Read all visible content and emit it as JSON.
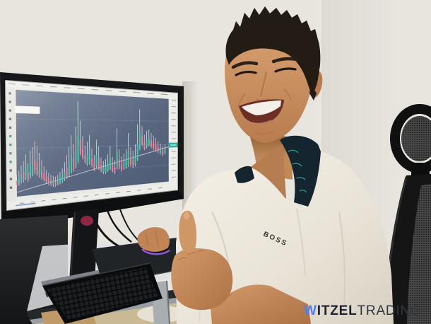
{
  "watermark": {
    "part_w": "W",
    "part_bold": "ITZEL",
    "part_light": "TRADING",
    "color_w": "#4d7ef2",
    "color_bold": "#1c232e",
    "color_light": "#30363f"
  },
  "shirt": {
    "brand": "BOSS"
  },
  "colors": {
    "wall": "#e6e4dc",
    "chart_background": "#5c6a84",
    "mouse_rgb_glow": "#a05ef5",
    "price_label": "#2cb5a5"
  },
  "chart_data": {
    "type": "candlestick",
    "title": "",
    "background": "#5c6a84",
    "up_color": "#4ec7ae",
    "down_color": "#ef8396",
    "wick_up": "#cdeee6",
    "wick_down": "#f6ccd4",
    "price_label_color": "#2cb5a5",
    "price_label_v": 0.56,
    "h_gridlines": [
      0.27,
      0.55,
      0.8
    ],
    "trendline": {
      "from": [
        0.0,
        0.96
      ],
      "to": [
        1.0,
        0.58
      ]
    },
    "legend_panel": true,
    "candles": [
      [
        0.0,
        0.8,
        0.89,
        "d"
      ],
      [
        0.015,
        0.76,
        0.88,
        "u"
      ],
      [
        0.03,
        0.71,
        0.86,
        "u"
      ],
      [
        0.045,
        0.67,
        0.85,
        "d"
      ],
      [
        0.06,
        0.61,
        0.83,
        "u"
      ],
      [
        0.075,
        0.69,
        0.85,
        "d"
      ],
      [
        0.09,
        0.57,
        0.82,
        "u"
      ],
      [
        0.105,
        0.54,
        0.8,
        "u"
      ],
      [
        0.12,
        0.49,
        0.78,
        "d"
      ],
      [
        0.135,
        0.53,
        0.8,
        "d"
      ],
      [
        0.15,
        0.6,
        0.82,
        "u"
      ],
      [
        0.165,
        0.67,
        0.84,
        "d"
      ],
      [
        0.18,
        0.73,
        0.86,
        "d"
      ],
      [
        0.195,
        0.77,
        0.88,
        "d"
      ],
      [
        0.21,
        0.8,
        0.9,
        "d"
      ],
      [
        0.225,
        0.82,
        0.91,
        "d"
      ],
      [
        0.24,
        0.83,
        0.92,
        "u"
      ],
      [
        0.255,
        0.84,
        0.92,
        "d"
      ],
      [
        0.27,
        0.82,
        0.91,
        "u"
      ],
      [
        0.285,
        0.8,
        0.9,
        "u"
      ],
      [
        0.3,
        0.76,
        0.89,
        "u"
      ],
      [
        0.315,
        0.7,
        0.87,
        "u"
      ],
      [
        0.33,
        0.63,
        0.85,
        "d"
      ],
      [
        0.345,
        0.55,
        0.83,
        "u"
      ],
      [
        0.36,
        0.43,
        0.8,
        "u"
      ],
      [
        0.375,
        0.52,
        0.78,
        "d"
      ],
      [
        0.39,
        0.34,
        0.75,
        "u"
      ],
      [
        0.405,
        0.08,
        0.7,
        "u"
      ],
      [
        0.42,
        0.28,
        0.62,
        "d"
      ],
      [
        0.435,
        0.44,
        0.66,
        "d"
      ],
      [
        0.45,
        0.54,
        0.71,
        "d"
      ],
      [
        0.465,
        0.5,
        0.73,
        "u"
      ],
      [
        0.48,
        0.43,
        0.72,
        "u"
      ],
      [
        0.495,
        0.57,
        0.75,
        "d"
      ],
      [
        0.51,
        0.64,
        0.79,
        "d"
      ],
      [
        0.525,
        0.48,
        0.76,
        "u"
      ],
      [
        0.54,
        0.55,
        0.78,
        "d"
      ],
      [
        0.555,
        0.67,
        0.81,
        "d"
      ],
      [
        0.57,
        0.71,
        0.83,
        "u"
      ],
      [
        0.585,
        0.69,
        0.83,
        "u"
      ],
      [
        0.6,
        0.64,
        0.81,
        "u"
      ],
      [
        0.615,
        0.55,
        0.79,
        "u"
      ],
      [
        0.63,
        0.67,
        0.82,
        "d"
      ],
      [
        0.645,
        0.71,
        0.84,
        "d"
      ],
      [
        0.66,
        0.36,
        0.79,
        "u"
      ],
      [
        0.675,
        0.59,
        0.79,
        "d"
      ],
      [
        0.69,
        0.67,
        0.82,
        "d"
      ],
      [
        0.705,
        0.64,
        0.8,
        "u"
      ],
      [
        0.72,
        0.59,
        0.79,
        "u"
      ],
      [
        0.735,
        0.41,
        0.77,
        "u"
      ],
      [
        0.75,
        0.57,
        0.77,
        "d"
      ],
      [
        0.765,
        0.61,
        0.79,
        "d"
      ],
      [
        0.78,
        0.54,
        0.77,
        "u"
      ],
      [
        0.795,
        0.31,
        0.71,
        "u"
      ],
      [
        0.81,
        0.14,
        0.59,
        "u"
      ],
      [
        0.825,
        0.33,
        0.54,
        "d"
      ],
      [
        0.84,
        0.43,
        0.59,
        "d"
      ],
      [
        0.855,
        0.39,
        0.57,
        "u"
      ],
      [
        0.87,
        0.37,
        0.55,
        "u"
      ],
      [
        0.885,
        0.41,
        0.57,
        "d"
      ],
      [
        0.9,
        0.44,
        0.59,
        "d"
      ],
      [
        0.915,
        0.47,
        0.61,
        "d"
      ],
      [
        0.93,
        0.51,
        0.63,
        "d"
      ],
      [
        0.945,
        0.54,
        0.65,
        "u"
      ],
      [
        0.96,
        0.57,
        0.67,
        "d"
      ],
      [
        0.975,
        0.55,
        0.65,
        "u"
      ]
    ]
  }
}
